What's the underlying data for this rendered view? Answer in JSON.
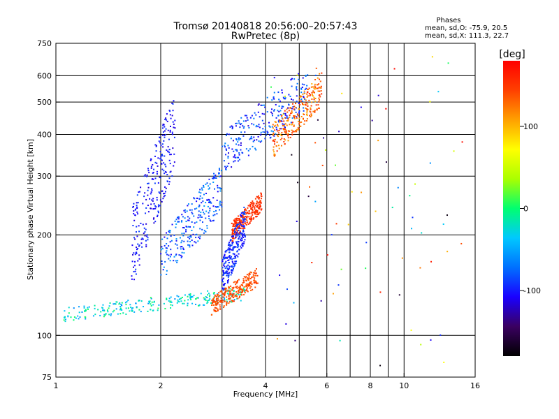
{
  "chart_data": {
    "type": "scatter",
    "title": "Tromsø 20140818 20:56:00–20:57:43",
    "subtitle": "RwPretec (8p)",
    "xlabel": "Frequency [MHz]",
    "ylabel": "Stationary phase Virtual Height [km]",
    "x_scale": "log",
    "y_scale": "log",
    "xlim": [
      1,
      16
    ],
    "ylim": [
      75,
      750
    ],
    "x_ticks": [
      1,
      2,
      4,
      6,
      8,
      10,
      16
    ],
    "y_ticks": [
      75,
      100,
      200,
      300,
      400,
      500,
      600,
      750
    ],
    "x_tick_labels": [
      "1",
      "2",
      "4",
      "6",
      "8",
      "10",
      "16"
    ],
    "y_tick_labels": [
      "75",
      "100",
      "200",
      "300",
      "400",
      "500",
      "600",
      "750"
    ],
    "x_grid": [
      1,
      2,
      4,
      6,
      8,
      10,
      16
    ],
    "x_grid_minor": [
      3,
      5,
      7,
      9
    ],
    "y_grid": [
      100,
      200,
      300,
      400,
      500,
      600
    ],
    "grid": true,
    "colorbar": {
      "label": "[deg]",
      "range": [
        -180,
        180
      ],
      "ticks": [
        100,
        0,
        -100
      ],
      "tick_labels": [
        "100",
        "0",
        "-100"
      ],
      "colors": [
        "#000000",
        "#3a0060",
        "#1a00ff",
        "#0070ff",
        "#00c8ff",
        "#00ff70",
        "#aaff00",
        "#ffff00",
        "#ffa000",
        "#ff4000",
        "#ff0000"
      ]
    },
    "info": {
      "heading": "Phases",
      "line_o": "mean, sd,O: -75.9, 20.5",
      "line_x": "mean, sd,X: 111.3, 22.7"
    },
    "traces": [
      {
        "name": "",
        "x_range": [
          1.05,
          3.5
        ],
        "y_range": [
          110,
          140
        ],
        "phase": [
          -60,
          10
        ]
      },
      {
        "name": "",
        "x_range": [
          2.8,
          3.8
        ],
        "y_range": [
          115,
          160
        ],
        "phase": [
          130,
          150
        ]
      },
      {
        "name": "",
        "x_range": [
          1.65,
          2.2
        ],
        "y_range": [
          140,
          540
        ],
        "phase": [
          -120,
          -85
        ]
      },
      {
        "name": "",
        "x_range": [
          2.0,
          3.0
        ],
        "y_range": [
          140,
          330
        ],
        "phase": [
          -110,
          -50
        ]
      },
      {
        "name": "",
        "x_range": [
          3.0,
          5.3
        ],
        "y_range": [
          300,
          640
        ],
        "phase": [
          -120,
          -60
        ]
      },
      {
        "name": "",
        "x_range": [
          4.2,
          5.8
        ],
        "y_range": [
          340,
          620
        ],
        "phase": [
          100,
          160
        ]
      },
      {
        "name": "",
        "x_range": [
          3.2,
          3.9
        ],
        "y_range": [
          190,
          270
        ],
        "phase": [
          145,
          160
        ]
      },
      {
        "name": "",
        "x_range": [
          3.0,
          3.5
        ],
        "y_range": [
          130,
          250
        ],
        "phase": [
          -110,
          -80
        ]
      }
    ]
  }
}
